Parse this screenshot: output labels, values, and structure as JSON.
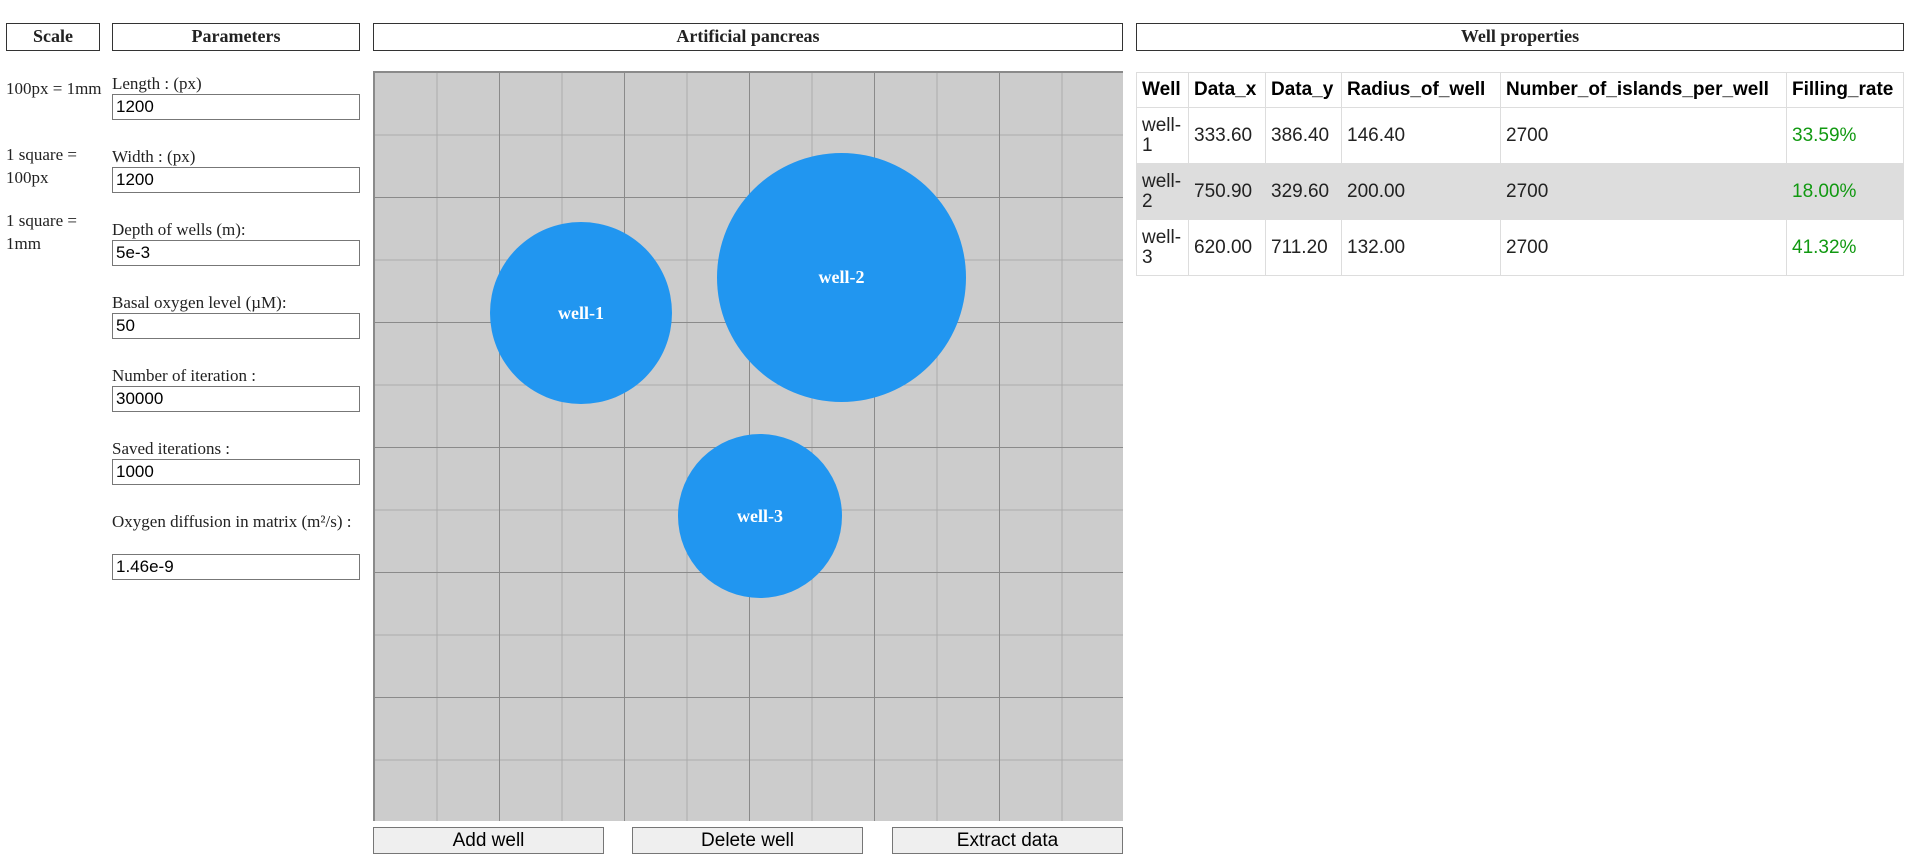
{
  "headers": {
    "scale": "Scale",
    "parameters": "Parameters",
    "canvas": "Artificial pancreas",
    "well_properties": "Well properties"
  },
  "scale_notes": [
    "100px = 1mm",
    "1 square = 100px",
    "1 square = 1mm"
  ],
  "parameters": {
    "length": {
      "label": "Length : (px)",
      "value": "1200"
    },
    "width": {
      "label": "Width : (px)",
      "value": "1200"
    },
    "depth": {
      "label": "Depth of wells (m):",
      "value": "5e-3"
    },
    "oxygen": {
      "label": "Basal oxygen level (µM):",
      "value": "50"
    },
    "iterations": {
      "label": "Number of iteration :",
      "value": "30000"
    },
    "saved": {
      "label": "Saved iterations :",
      "value": "1000"
    },
    "diffusion": {
      "label": "Oxygen diffusion in matrix (m²/s) :",
      "value": "1.46e-9"
    }
  },
  "canvas": {
    "wells": [
      "well-1",
      "well-2",
      "well-3"
    ],
    "well_color": "#2196f0",
    "background_color": "#cccccc"
  },
  "buttons": {
    "add": "Add well",
    "delete": "Delete well",
    "extract": "Extract data"
  },
  "table": {
    "columns": [
      "Well",
      "Data_x",
      "Data_y",
      "Radius_of_well",
      "Number_of_islands_per_well",
      "Filling_rate"
    ],
    "rows": [
      [
        "well-1",
        "333.60",
        "386.40",
        "146.40",
        "2700",
        "33.59%"
      ],
      [
        "well-2",
        "750.90",
        "329.60",
        "200.00",
        "2700",
        "18.00%"
      ],
      [
        "well-3",
        "620.00",
        "711.20",
        "132.00",
        "2700",
        "41.32%"
      ]
    ],
    "filling_rate_color": "#119911"
  }
}
